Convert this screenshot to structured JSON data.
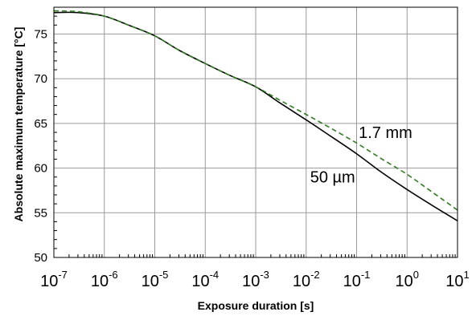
{
  "chart_data": {
    "type": "line",
    "title": "",
    "xlabel": "Exposure duration [s]",
    "ylabel": "Absolute maximum temperature [°C]",
    "x_scale": "log",
    "xlim": [
      1e-07,
      10
    ],
    "ylim": [
      50,
      78
    ],
    "x_tick_labels": [
      {
        "base": "10",
        "exp": "-7"
      },
      {
        "base": "10",
        "exp": "-6"
      },
      {
        "base": "10",
        "exp": "-5"
      },
      {
        "base": "10",
        "exp": "-4"
      },
      {
        "base": "10",
        "exp": "-3"
      },
      {
        "base": "10",
        "exp": "-2"
      },
      {
        "base": "10",
        "exp": "-1"
      },
      {
        "base": "10",
        "exp": "0"
      },
      {
        "base": "10",
        "exp": "1"
      }
    ],
    "y_ticks": [
      50,
      55,
      60,
      65,
      70,
      75
    ],
    "grid": true,
    "series": [
      {
        "name": "50 µm",
        "color": "#000000",
        "style": "solid",
        "x": [
          1e-07,
          3e-07,
          1e-06,
          3e-06,
          1e-05,
          3e-05,
          0.0001,
          0.0003,
          0.001,
          0.003,
          0.01,
          0.03,
          0.1,
          0.3,
          1,
          3,
          10
        ],
        "y": [
          77.4,
          77.4,
          77.0,
          76.0,
          74.8,
          73.2,
          71.7,
          70.4,
          69.1,
          67.3,
          65.4,
          63.6,
          61.6,
          59.6,
          57.6,
          55.9,
          54.1
        ]
      },
      {
        "name": "1.7 mm",
        "color": "#2e7d1f",
        "style": "dashed",
        "x": [
          1e-07,
          3e-07,
          1e-06,
          3e-06,
          1e-05,
          3e-05,
          0.0001,
          0.0003,
          0.001,
          0.003,
          0.01,
          0.03,
          0.1,
          0.3,
          1,
          3,
          10
        ],
        "y": [
          77.6,
          77.5,
          77.0,
          76.0,
          74.8,
          73.2,
          71.7,
          70.4,
          69.1,
          67.6,
          66.0,
          64.5,
          62.8,
          61.1,
          59.3,
          57.4,
          55.3
        ]
      }
    ],
    "annotations": [
      {
        "text": "1.7 mm",
        "x": 0.11,
        "y": 64.0
      },
      {
        "text": "50 µm",
        "x": 0.012,
        "y": 59.0
      }
    ]
  }
}
